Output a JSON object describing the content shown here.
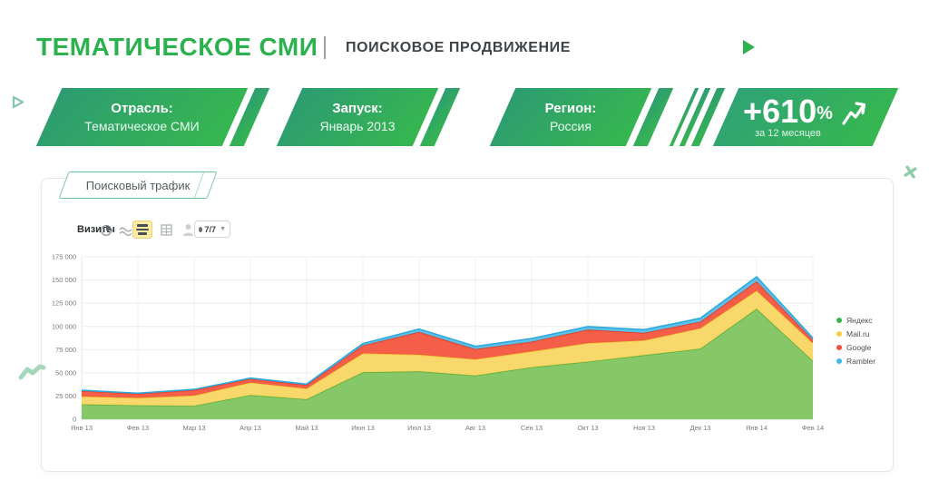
{
  "header": {
    "title": "ТЕМАТИЧЕСКОЕ СМИ",
    "separator": "|",
    "subtitle": "ПОИСКОВОЕ ПРОДВИЖЕНИЕ"
  },
  "ribbons": [
    {
      "label": "Отрасль:",
      "value": "Тематическое СМИ"
    },
    {
      "label": "Запуск:",
      "value": "Январь 2013"
    },
    {
      "label": "Регион:",
      "value": "Россия"
    }
  ],
  "kpi": {
    "value": "+610",
    "percent": "%",
    "caption": "за 12 месяцев"
  },
  "panel": {
    "tab_label": "Поисковый трафик",
    "toolbar": {
      "metric_label": "Визиты",
      "icons": [
        "pie-chart",
        "line-chart",
        "stacked-area",
        "table",
        "segments-person"
      ],
      "selected_icon": "stacked-area",
      "period_dropdown_value": "7/7"
    }
  },
  "chart_data": {
    "type": "area",
    "stacked": true,
    "grid": true,
    "legend_position": "right",
    "title": "Поисковый трафик",
    "ylabel": "Визиты",
    "ylim": [
      0,
      175000
    ],
    "ytick_step": 25000,
    "x": [
      "Янв 13",
      "Фев 13",
      "Мар 13",
      "Апр 13",
      "Май 13",
      "Июн 13",
      "Июл 13",
      "Авг 13",
      "Сен 13",
      "Окт 13",
      "Ноя 13",
      "Дек 13",
      "Янв 14",
      "Фев 14"
    ],
    "series": [
      {
        "name": "Яндекс",
        "color": "#7CC35B",
        "line_color": "#5FAE3C",
        "dot_color": "#34b54a",
        "values": [
          16000,
          15000,
          14500,
          26000,
          21500,
          50500,
          51500,
          47000,
          56000,
          62000,
          69000,
          76000,
          119000,
          63000
        ]
      },
      {
        "name": "Mail.ru",
        "color": "#F8D55E",
        "line_color": "#EDC33B",
        "dot_color": "#f7cf46",
        "values": [
          8500,
          8000,
          11000,
          13500,
          11500,
          20500,
          18000,
          17500,
          17000,
          20000,
          16000,
          22000,
          19500,
          19000
        ]
      },
      {
        "name": "Google",
        "color": "#F4503A",
        "line_color": "#E93A21",
        "dot_color": "#f4503a",
        "values": [
          6000,
          4500,
          6000,
          4000,
          4000,
          8500,
          24500,
          11000,
          10500,
          14500,
          8000,
          7000,
          10000,
          3500
        ]
      },
      {
        "name": "Rambler",
        "color": "#4FBDE8",
        "line_color": "#2FA9DC",
        "dot_color": "#3fb9e9",
        "values": [
          700,
          600,
          700,
          800,
          800,
          2000,
          3200,
          3000,
          3500,
          3300,
          3500,
          3800,
          5000,
          2000
        ]
      }
    ]
  },
  "colors": {
    "accent_green": "#2bb14e",
    "ribbon_gradient_start": "#2d9c72",
    "ribbon_gradient_end": "#36b74e",
    "card_border": "#e4e7e5"
  }
}
